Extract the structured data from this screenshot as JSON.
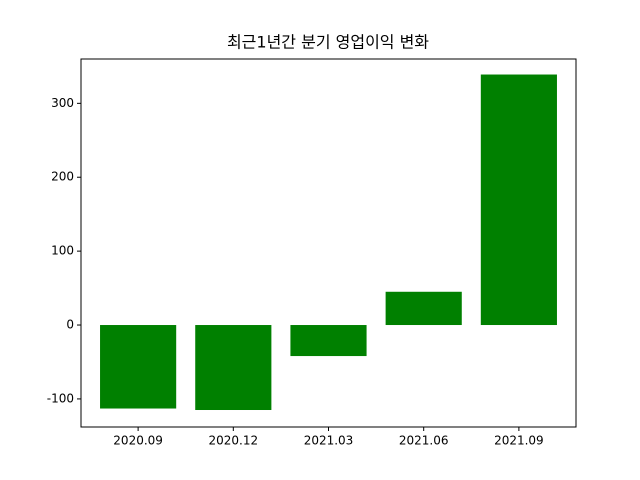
{
  "chart_data": {
    "type": "bar",
    "title": "최근1년간 분기 영업이익 변화",
    "categories": [
      "2020.09",
      "2020.12",
      "2021.03",
      "2021.06",
      "2021.09"
    ],
    "values": [
      -113,
      -115,
      -42,
      45,
      339
    ],
    "color": "#008000",
    "ylim": [
      -138,
      360
    ],
    "yticks": [
      -100,
      0,
      100,
      200,
      300
    ],
    "grid": false
  }
}
